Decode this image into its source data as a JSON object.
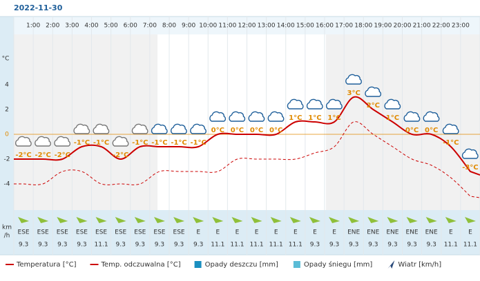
{
  "date": "2022-11-30",
  "chart_data": {
    "type": "line",
    "hour_labels": [
      "1:00",
      "2:00",
      "3:00",
      "4:00",
      "5:00",
      "6:00",
      "7:00",
      "8:00",
      "9:00",
      "10:00",
      "11:00",
      "12:00",
      "13:00",
      "14:00",
      "15:00",
      "16:00",
      "17:00",
      "18:00",
      "19:00",
      "20:00",
      "21:00",
      "22:00",
      "23:00"
    ],
    "y_label": "°C",
    "ylim": [
      -6,
      8
    ],
    "yticks": [
      -4,
      -2,
      0,
      2,
      4
    ],
    "zero_line_color": "#e08a00",
    "series": [
      {
        "name": "Temperatura [°C]",
        "color": "#cc0000",
        "values": [
          -2,
          -2,
          -2,
          -1,
          -1,
          -2,
          -1,
          -1,
          -1,
          -1,
          0,
          0,
          0,
          0,
          1,
          1,
          1,
          3,
          2,
          1,
          0,
          0,
          -1,
          -3
        ],
        "value_labels": [
          "-2°C",
          "-2°C",
          "-2°C",
          "-1°C",
          "-1°C",
          "-2°C",
          "-1°C",
          "-1°C",
          "-1°C",
          "-1°C",
          "0°C",
          "0°C",
          "0°C",
          "0°C",
          "1°C",
          "1°C",
          "1°C",
          "3°C",
          "2°C",
          "1°C",
          "0°C",
          "0°C",
          "-1°C",
          "-3°C"
        ]
      },
      {
        "name": "Temp. odczuwalna [°C]",
        "color": "#cc0000",
        "dashed": true,
        "values": [
          -4,
          -4,
          -3,
          -3,
          -4,
          -4,
          -4,
          -3,
          -3,
          -3,
          -3,
          -2,
          -2,
          -2,
          -2,
          -1.5,
          -1,
          1,
          0,
          -1,
          -2,
          -2.5,
          -3.5,
          -5
        ]
      }
    ],
    "wind_label": [
      "km",
      "/h"
    ],
    "wind_direction": [
      "ESE",
      "ESE",
      "ESE",
      "ESE",
      "ESE",
      "ESE",
      "ESE",
      "ESE",
      "ESE",
      "E",
      "E",
      "E",
      "E",
      "E",
      "E",
      "E",
      "E",
      "ENE",
      "ENE",
      "ENE",
      "ENE",
      "ENE",
      "E",
      "E"
    ],
    "wind_speed": [
      9.3,
      9.3,
      9.3,
      9.3,
      11.1,
      9.3,
      9.3,
      9.3,
      9.3,
      9.3,
      11.1,
      11.1,
      11.1,
      11.1,
      11.1,
      9.3,
      9.3,
      9.3,
      9.3,
      9.3,
      9.3,
      9.3,
      11.1,
      11.1
    ],
    "legend": [
      {
        "name": "Opady deszczu [mm]",
        "color": "#1a8fc0"
      },
      {
        "name": "Opady śniegu [mm]",
        "color": "#5bbcd6"
      },
      {
        "name": "Wiatr [km/h]",
        "color": "#2a4a7a"
      }
    ]
  }
}
